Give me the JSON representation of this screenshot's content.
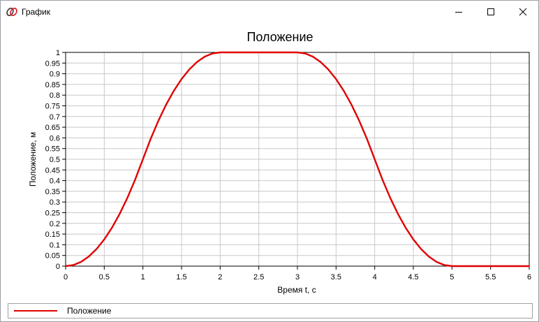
{
  "window": {
    "title": "График",
    "icon": "app-logo-icon",
    "controls": {
      "minimize": "minimize-icon",
      "maximize": "maximize-icon",
      "close": "close-icon"
    }
  },
  "colors": {
    "series": "#e00000",
    "grid": "#c8c8c8",
    "axis": "#000000"
  },
  "chart_data": {
    "type": "line",
    "title": "Положение",
    "xlabel": "Время t, с",
    "ylabel": "Положение, м",
    "xlim": [
      0,
      6
    ],
    "ylim": [
      0,
      1
    ],
    "x_ticks": [
      0,
      0.5,
      1,
      1.5,
      2,
      2.5,
      3,
      3.5,
      4,
      4.5,
      5,
      5.5,
      6
    ],
    "x_tick_labels": [
      "0",
      "0.5",
      "1",
      "1.5",
      "2",
      "2.5",
      "3",
      "3.5",
      "4",
      "4.5",
      "5",
      "5.5",
      "6"
    ],
    "y_ticks": [
      0,
      0.05,
      0.1,
      0.15,
      0.2,
      0.25,
      0.3,
      0.35,
      0.4,
      0.45,
      0.5,
      0.55,
      0.6,
      0.65,
      0.7,
      0.75,
      0.8,
      0.85,
      0.9,
      0.95,
      1
    ],
    "y_tick_labels": [
      "0",
      "0.05",
      "0.1",
      "0.15",
      "0.2",
      "0.25",
      "0.3",
      "0.35",
      "0.4",
      "0.45",
      "0.5",
      "0.55",
      "0.6",
      "0.65",
      "0.7",
      "0.75",
      "0.8",
      "0.85",
      "0.9",
      "0.95",
      "1"
    ],
    "grid": true,
    "legend": "bottom",
    "series": [
      {
        "name": "Положение",
        "color": "#e00000",
        "x": [
          0,
          0.1,
          0.2,
          0.3,
          0.4,
          0.5,
          0.6,
          0.7,
          0.8,
          0.9,
          1.0,
          1.1,
          1.2,
          1.3,
          1.4,
          1.5,
          1.6,
          1.7,
          1.8,
          1.9,
          2.0,
          2.2,
          2.4,
          2.6,
          2.8,
          3.0,
          3.1,
          3.2,
          3.3,
          3.4,
          3.5,
          3.6,
          3.7,
          3.8,
          3.9,
          4.0,
          4.1,
          4.2,
          4.3,
          4.4,
          4.5,
          4.6,
          4.7,
          4.8,
          4.9,
          5.0,
          5.5,
          6.0
        ],
        "y": [
          0,
          0.005,
          0.02,
          0.045,
          0.08,
          0.125,
          0.18,
          0.245,
          0.32,
          0.405,
          0.5,
          0.595,
          0.68,
          0.755,
          0.82,
          0.875,
          0.92,
          0.955,
          0.98,
          0.995,
          1,
          1,
          1,
          1,
          1,
          1,
          0.995,
          0.98,
          0.955,
          0.92,
          0.875,
          0.82,
          0.755,
          0.68,
          0.595,
          0.5,
          0.405,
          0.32,
          0.245,
          0.18,
          0.125,
          0.08,
          0.045,
          0.02,
          0.005,
          0,
          0,
          0
        ]
      }
    ]
  }
}
